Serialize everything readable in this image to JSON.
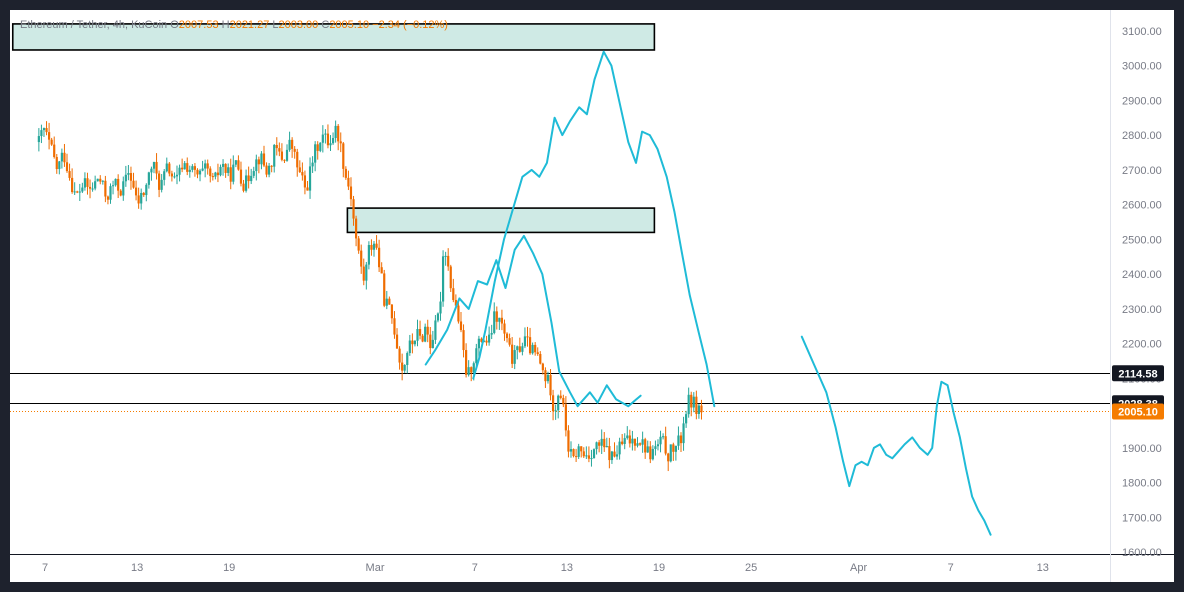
{
  "legend": {
    "symbol": "Ethereum / Tether, 4h, KuCoin",
    "open_label": "O",
    "open": "2007.53",
    "high_label": "H",
    "high": "2021.27",
    "low_label": "L",
    "low": "2003.00",
    "close_label": "C",
    "close": "2005.10",
    "change": "−2.34 (−0.12%)"
  },
  "colors": {
    "up": "#26a69a",
    "down": "#ef6c00",
    "forecast": "#1fbbd7",
    "zone_fill": "#cfeae5",
    "last_price": "#f57c00",
    "marker": "#131722"
  },
  "chart_data": {
    "type": "candlestick",
    "title": "Ethereum / Tether, 4h, KuCoin",
    "xlabel": "",
    "ylabel": "",
    "ylim": [
      1595,
      3150
    ],
    "x_axis_ticks": [
      {
        "label": "7",
        "day": 7
      },
      {
        "label": "13",
        "day": 13
      },
      {
        "label": "19",
        "day": 19
      },
      {
        "label": "Mar",
        "day": 28.5
      },
      {
        "label": "7",
        "day": 35
      },
      {
        "label": "13",
        "day": 41
      },
      {
        "label": "19",
        "day": 47
      },
      {
        "label": "25",
        "day": 53
      },
      {
        "label": "Apr",
        "day": 60
      },
      {
        "label": "7",
        "day": 66
      },
      {
        "label": "13",
        "day": 72
      }
    ],
    "y_axis_ticks": [
      "1600.00",
      "1700.00",
      "1800.00",
      "1900.00",
      "2000.00",
      "2100.00",
      "2200.00",
      "2300.00",
      "2400.00",
      "2500.00",
      "2600.00",
      "2700.00",
      "2800.00",
      "2900.00",
      "3000.00",
      "3100.00"
    ],
    "y_axis_values": [
      1600,
      1700,
      1800,
      1900,
      2000,
      2100,
      2200,
      2300,
      2400,
      2500,
      2600,
      2700,
      2800,
      2900,
      3000,
      3100
    ],
    "price_path": [
      [
        6.6,
        2780
      ],
      [
        6.9,
        2820
      ],
      [
        7.4,
        2760
      ],
      [
        7.8,
        2700
      ],
      [
        8.2,
        2750
      ],
      [
        8.5,
        2700
      ],
      [
        9.0,
        2620
      ],
      [
        9.5,
        2660
      ],
      [
        10.0,
        2640
      ],
      [
        10.5,
        2680
      ],
      [
        11.0,
        2620
      ],
      [
        11.5,
        2660
      ],
      [
        12.0,
        2640
      ],
      [
        12.5,
        2700
      ],
      [
        13.0,
        2600
      ],
      [
        13.5,
        2640
      ],
      [
        14.0,
        2720
      ],
      [
        14.5,
        2650
      ],
      [
        15.0,
        2710
      ],
      [
        15.5,
        2660
      ],
      [
        16.0,
        2720
      ],
      [
        16.5,
        2700
      ],
      [
        17.0,
        2680
      ],
      [
        17.5,
        2700
      ],
      [
        18.0,
        2660
      ],
      [
        18.5,
        2720
      ],
      [
        19.0,
        2680
      ],
      [
        19.5,
        2720
      ],
      [
        20.0,
        2650
      ],
      [
        20.5,
        2710
      ],
      [
        21.0,
        2740
      ],
      [
        21.5,
        2690
      ],
      [
        22.0,
        2760
      ],
      [
        22.5,
        2730
      ],
      [
        23.0,
        2780
      ],
      [
        23.5,
        2700
      ],
      [
        24.0,
        2640
      ],
      [
        24.5,
        2740
      ],
      [
        25.0,
        2800
      ],
      [
        25.5,
        2780
      ],
      [
        26.0,
        2820
      ],
      [
        26.3,
        2760
      ],
      [
        26.6,
        2680
      ],
      [
        26.9,
        2640
      ],
      [
        27.2,
        2520
      ],
      [
        27.5,
        2440
      ],
      [
        27.8,
        2380
      ],
      [
        28.1,
        2470
      ],
      [
        28.5,
        2500
      ],
      [
        28.8,
        2420
      ],
      [
        29.1,
        2330
      ],
      [
        29.4,
        2300
      ],
      [
        29.7,
        2260
      ],
      [
        30.0,
        2180
      ],
      [
        30.3,
        2120
      ],
      [
        30.6,
        2180
      ],
      [
        30.9,
        2200
      ],
      [
        31.2,
        2230
      ],
      [
        31.5,
        2210
      ],
      [
        31.8,
        2250
      ],
      [
        32.1,
        2200
      ],
      [
        32.4,
        2240
      ],
      [
        32.7,
        2290
      ],
      [
        33.0,
        2500
      ],
      [
        33.3,
        2410
      ],
      [
        33.6,
        2330
      ],
      [
        33.9,
        2280
      ],
      [
        34.2,
        2190
      ],
      [
        34.5,
        2100
      ],
      [
        34.8,
        2140
      ],
      [
        35.1,
        2180
      ],
      [
        35.5,
        2220
      ],
      [
        35.9,
        2200
      ],
      [
        36.3,
        2280
      ],
      [
        36.7,
        2260
      ],
      [
        37.1,
        2200
      ],
      [
        37.5,
        2150
      ],
      [
        37.9,
        2190
      ],
      [
        38.3,
        2210
      ],
      [
        38.7,
        2180
      ],
      [
        39.1,
        2160
      ],
      [
        39.5,
        2110
      ],
      [
        39.9,
        2080
      ],
      [
        40.2,
        2000
      ],
      [
        40.5,
        2080
      ],
      [
        40.8,
        2000
      ],
      [
        41.1,
        1900
      ],
      [
        41.4,
        1860
      ],
      [
        41.7,
        1900
      ],
      [
        42.0,
        1880
      ],
      [
        42.4,
        1880
      ],
      [
        42.8,
        1900
      ],
      [
        43.2,
        1910
      ],
      [
        43.6,
        1890
      ],
      [
        44.0,
        1870
      ],
      [
        44.4,
        1900
      ],
      [
        44.8,
        1920
      ],
      [
        45.2,
        1920
      ],
      [
        45.6,
        1930
      ],
      [
        46.0,
        1910
      ],
      [
        46.4,
        1880
      ],
      [
        46.8,
        1900
      ],
      [
        47.2,
        1920
      ],
      [
        47.6,
        1880
      ],
      [
        48.0,
        1900
      ],
      [
        48.4,
        1920
      ],
      [
        48.7,
        2000
      ],
      [
        49.0,
        2040
      ],
      [
        49.4,
        2020
      ],
      [
        49.8,
        2005.1
      ]
    ],
    "zones": [
      {
        "name": "upper-resistance-zone",
        "x0": 4.9,
        "x1": 46.7,
        "y0": 3045,
        "y1": 3120
      },
      {
        "name": "mid-resistance-zone",
        "x0": 26.7,
        "x1": 46.7,
        "y0": 2520,
        "y1": 2590
      }
    ],
    "horizontal_lines": [
      {
        "name": "level-2114",
        "value": 2114.58,
        "label": "2114.58"
      },
      {
        "name": "level-2028",
        "value": 2028.38,
        "label": "2028.38"
      }
    ],
    "last_price": {
      "value": 2005.1,
      "label": "2005.10"
    },
    "forecast_path_1": [
      [
        31.8,
        2140
      ],
      [
        32.4,
        2180
      ],
      [
        33.2,
        2240
      ],
      [
        34.0,
        2330
      ],
      [
        34.6,
        2300
      ],
      [
        35.2,
        2380
      ],
      [
        35.8,
        2370
      ],
      [
        36.4,
        2440
      ],
      [
        37.0,
        2360
      ],
      [
        37.6,
        2470
      ],
      [
        38.2,
        2510
      ],
      [
        38.8,
        2460
      ],
      [
        39.4,
        2400
      ],
      [
        40.0,
        2260
      ],
      [
        40.5,
        2120
      ],
      [
        41.2,
        2060
      ],
      [
        41.7,
        2020
      ],
      [
        42.1,
        2040
      ],
      [
        42.5,
        2060
      ],
      [
        43.0,
        2030
      ],
      [
        43.6,
        2080
      ],
      [
        44.2,
        2040
      ],
      [
        45.0,
        2020
      ],
      [
        45.8,
        2050
      ]
    ],
    "forecast_path_2": [
      [
        34.9,
        2100
      ],
      [
        35.3,
        2160
      ],
      [
        35.7,
        2240
      ],
      [
        36.3,
        2380
      ],
      [
        36.9,
        2500
      ],
      [
        37.5,
        2590
      ],
      [
        38.1,
        2680
      ],
      [
        38.7,
        2700
      ],
      [
        39.2,
        2680
      ],
      [
        39.7,
        2720
      ],
      [
        40.2,
        2850
      ],
      [
        40.7,
        2800
      ],
      [
        41.2,
        2840
      ],
      [
        41.8,
        2880
      ],
      [
        42.3,
        2860
      ],
      [
        42.8,
        2960
      ],
      [
        43.4,
        3040
      ],
      [
        43.9,
        3000
      ],
      [
        44.5,
        2880
      ],
      [
        45.0,
        2780
      ],
      [
        45.5,
        2720
      ],
      [
        45.9,
        2810
      ],
      [
        46.4,
        2800
      ],
      [
        46.9,
        2760
      ],
      [
        47.5,
        2680
      ],
      [
        48.0,
        2580
      ],
      [
        48.5,
        2460
      ],
      [
        49.0,
        2340
      ],
      [
        49.6,
        2230
      ],
      [
        50.1,
        2140
      ],
      [
        50.6,
        2020
      ]
    ],
    "forecast_path_3": [
      [
        56.3,
        2220
      ],
      [
        57.1,
        2140
      ],
      [
        57.9,
        2060
      ],
      [
        58.5,
        1960
      ],
      [
        59.0,
        1860
      ],
      [
        59.4,
        1790
      ],
      [
        59.8,
        1850
      ],
      [
        60.2,
        1860
      ],
      [
        60.6,
        1850
      ],
      [
        61.0,
        1900
      ],
      [
        61.4,
        1910
      ],
      [
        61.8,
        1880
      ],
      [
        62.2,
        1870
      ],
      [
        62.6,
        1890
      ],
      [
        63.0,
        1910
      ],
      [
        63.5,
        1930
      ],
      [
        64.0,
        1900
      ],
      [
        64.5,
        1880
      ],
      [
        64.8,
        1900
      ],
      [
        65.1,
        2020
      ],
      [
        65.4,
        2090
      ],
      [
        65.8,
        2080
      ],
      [
        66.2,
        2000
      ],
      [
        66.6,
        1930
      ],
      [
        67.0,
        1840
      ],
      [
        67.4,
        1760
      ],
      [
        67.8,
        1720
      ],
      [
        68.2,
        1690
      ],
      [
        68.6,
        1650
      ]
    ]
  }
}
